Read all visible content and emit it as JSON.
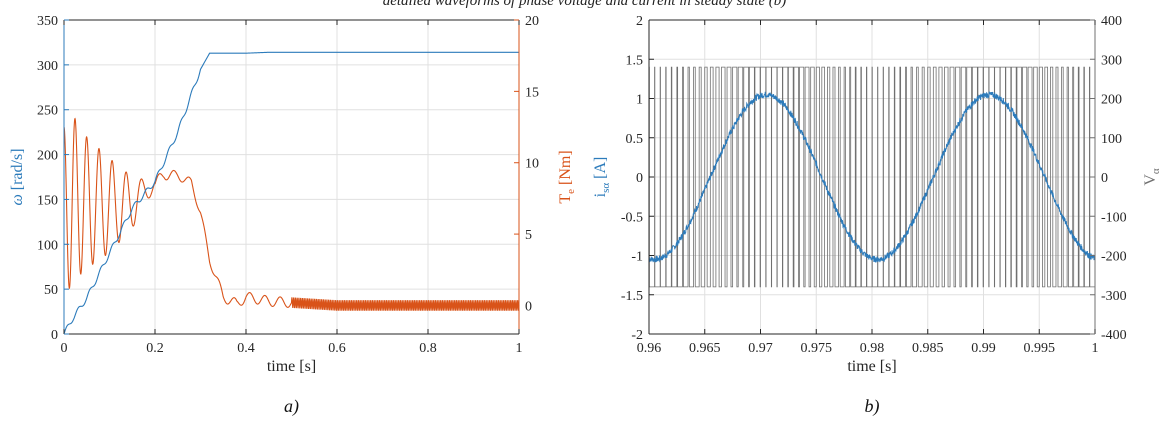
{
  "figure": {
    "top_caption": "detailed waveforms of phase voltage and current in steady state (b)",
    "colors": {
      "blue": "#2c7bbb",
      "orange": "#d95319",
      "gray": "#707070",
      "axis": "#262626",
      "grid": "#e0e0e0"
    }
  },
  "chart_data": [
    {
      "id": "a",
      "type": "line",
      "panel_label": "a)",
      "xlabel": "time [s]",
      "xlim": [
        0,
        1
      ],
      "xticks": [
        0,
        0.2,
        0.4,
        0.6,
        0.8,
        1
      ],
      "xtick_labels": [
        "0",
        "0.2",
        "0.4",
        "0.6",
        "0.8",
        "1"
      ],
      "left_axis": {
        "label_symbol": "ω",
        "label_unit": " [rad/s]",
        "ylim": [
          0,
          350
        ],
        "ticks": [
          0,
          50,
          100,
          150,
          200,
          250,
          300,
          350
        ],
        "tick_labels": [
          "0",
          "50",
          "100",
          "150",
          "200",
          "250",
          "300",
          "350"
        ]
      },
      "right_axis": {
        "label_main": "T",
        "label_sub": "e",
        "label_unit": " [Nm]",
        "ylim": [
          -2,
          20
        ],
        "ticks": [
          0,
          5,
          10,
          15,
          20
        ],
        "tick_labels": [
          "0",
          "5",
          "10",
          "15",
          "20"
        ]
      },
      "grid": true,
      "series": [
        {
          "axis": "left",
          "color": "#2c7bbb",
          "x": [
            0,
            0.02,
            0.05,
            0.1,
            0.15,
            0.2,
            0.25,
            0.3,
            0.32,
            0.35,
            0.4,
            0.45,
            0.5,
            0.6,
            0.8,
            1.0
          ],
          "y": [
            0,
            18,
            40,
            90,
            140,
            170,
            225,
            295,
            313,
            313,
            313,
            314,
            314,
            314,
            314,
            314
          ]
        },
        {
          "axis": "right",
          "color": "#d95319",
          "envelope_x": [
            0,
            0.02,
            0.05,
            0.1,
            0.15,
            0.18,
            0.2,
            0.22,
            0.25,
            0.28,
            0.3,
            0.32,
            0.35,
            0.38,
            0.4,
            0.45,
            0.5,
            0.6,
            0.8,
            1.0
          ],
          "envelope_mean": [
            6.5,
            7.5,
            7.2,
            7.0,
            7.2,
            8.0,
            8.5,
            9.2,
            9.1,
            8.6,
            6.5,
            3.2,
            0.6,
            0.1,
            0.6,
            0.3,
            0.2,
            0.0,
            0.0,
            0.0
          ],
          "envelope_amp": [
            6.0,
            5.8,
            4.6,
            3.3,
            1.8,
            0.8,
            0.4,
            0.4,
            0.3,
            0.3,
            0.3,
            0.3,
            0.35,
            0.35,
            0.35,
            0.35,
            0.35,
            0.35,
            0.35,
            0.35
          ]
        }
      ]
    },
    {
      "id": "b",
      "type": "line",
      "panel_label": "b)",
      "xlabel": "time [s]",
      "xlim": [
        0.96,
        1.0
      ],
      "xticks": [
        0.96,
        0.965,
        0.97,
        0.975,
        0.98,
        0.985,
        0.99,
        0.995,
        1.0
      ],
      "xtick_labels": [
        "0.96",
        "0.965",
        "0.97",
        "0.975",
        "0.98",
        "0.985",
        "0.99",
        "0.995",
        "1"
      ],
      "left_axis": {
        "label_main": "i",
        "label_sub": "sα",
        "label_unit": " [A]",
        "ylim": [
          -2,
          2
        ],
        "ticks": [
          -2,
          -1.5,
          -1,
          -0.5,
          0,
          0.5,
          1,
          1.5,
          2
        ],
        "tick_labels": [
          "-2",
          "-1.5",
          "-1",
          "-0.5",
          "0",
          "0.5",
          "1",
          "1.5",
          "2"
        ]
      },
      "right_axis": {
        "label_main": "V",
        "label_sub": "α",
        "ylim": [
          -400,
          400
        ],
        "ticks": [
          -400,
          -300,
          -200,
          -100,
          0,
          100,
          200,
          300,
          400
        ],
        "tick_labels": [
          "-400",
          "-300",
          "-200",
          "-100",
          "0",
          "100",
          "200",
          "300",
          "400"
        ]
      },
      "grid": true,
      "series": [
        {
          "axis": "left",
          "color": "#2c7bbb",
          "kind": "sine",
          "amplitude": 1.05,
          "frequency_hz": 50,
          "peak_at_s": 0.9705,
          "noise": 0.08
        },
        {
          "axis": "right",
          "color": "#707070",
          "kind": "pwm",
          "levels": [
            -280,
            280
          ],
          "switching_frequency_hz": 2000
        }
      ]
    }
  ]
}
